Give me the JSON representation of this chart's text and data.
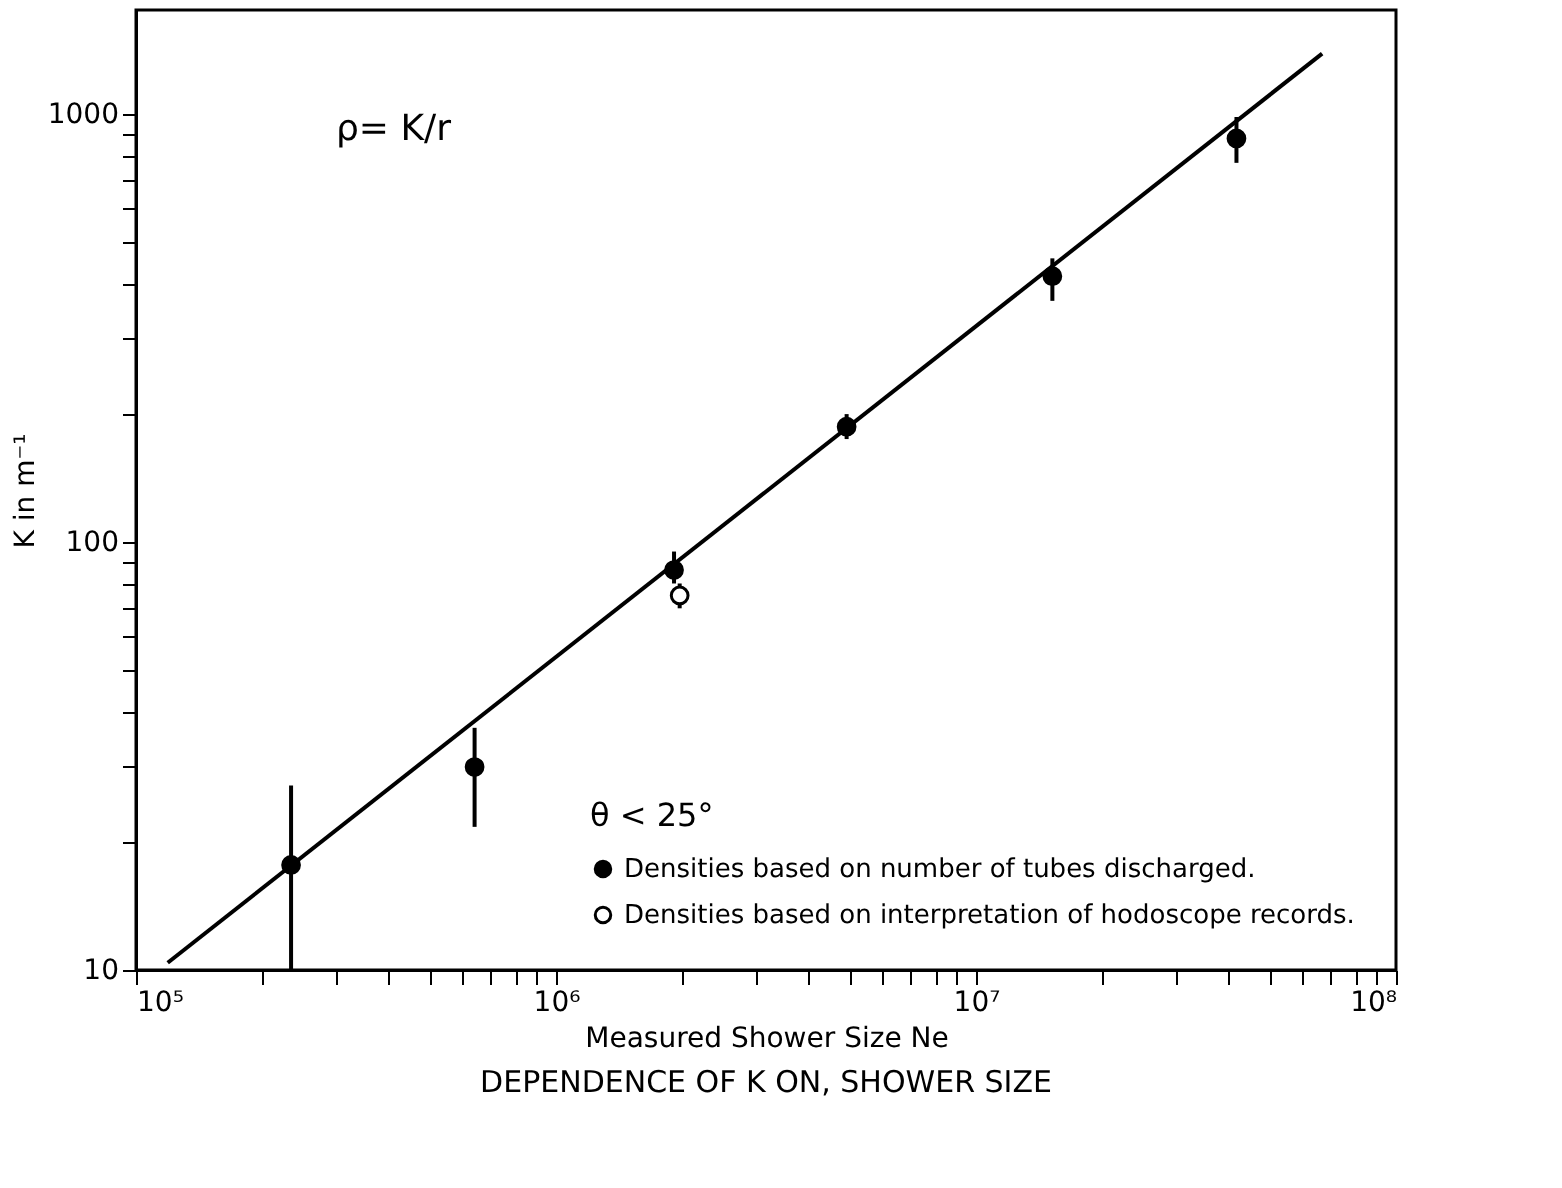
{
  "chart_data": {
    "type": "scatter",
    "title": "DEPENDENCE OF K ON, SHOWER SIZE",
    "xlabel": "Measured Shower Size Ne",
    "ylabel": "K in m⁻¹",
    "legend_title": "θ < 25°",
    "annotations": [
      "ρ= K/r"
    ],
    "log": "xy",
    "grid": false,
    "legend": "bottom right",
    "marker": "circle",
    "xlim": [
      100000,
      100000000
    ],
    "ylim": [
      10,
      1750
    ],
    "xticks": [
      {
        "value": 100000,
        "label": "10⁵"
      },
      {
        "value": 200000,
        "label": null
      },
      {
        "value": 300000,
        "label": null
      },
      {
        "value": 400000,
        "label": null
      },
      {
        "value": 500000,
        "label": null
      },
      {
        "value": 600000,
        "label": null
      },
      {
        "value": 700000,
        "label": null
      },
      {
        "value": 800000,
        "label": null
      },
      {
        "value": 900000,
        "label": null
      },
      {
        "value": 1000000,
        "label": "10⁶"
      },
      {
        "value": 2000000,
        "label": null
      },
      {
        "value": 3000000,
        "label": null
      },
      {
        "value": 4000000,
        "label": null
      },
      {
        "value": 5000000,
        "label": null
      },
      {
        "value": 6000000,
        "label": null
      },
      {
        "value": 7000000,
        "label": null
      },
      {
        "value": 8000000,
        "label": null
      },
      {
        "value": 9000000,
        "label": null
      },
      {
        "value": 10000000,
        "label": "10⁷"
      },
      {
        "value": 20000000,
        "label": null
      },
      {
        "value": 30000000,
        "label": null
      },
      {
        "value": 40000000,
        "label": null
      },
      {
        "value": 50000000,
        "label": null
      },
      {
        "value": 60000000,
        "label": null
      },
      {
        "value": 70000000,
        "label": null
      },
      {
        "value": 80000000,
        "label": null
      },
      {
        "value": 90000000,
        "label": null
      },
      {
        "value": 100000000,
        "label": "10⁸"
      }
    ],
    "yticks": [
      10,
      {
        "value": 20,
        "label": null
      },
      {
        "value": 30,
        "label": null
      },
      {
        "value": 40,
        "label": null
      },
      {
        "value": 50,
        "label": null
      },
      {
        "value": 60,
        "label": null
      },
      {
        "value": 70,
        "label": null
      },
      {
        "value": 80,
        "label": null
      },
      {
        "value": 90,
        "label": null
      },
      100,
      {
        "value": 200,
        "label": null
      },
      {
        "value": 300,
        "label": null
      },
      {
        "value": 400,
        "label": null
      },
      {
        "value": 500,
        "label": null
      },
      {
        "value": 600,
        "label": null
      },
      {
        "value": 700,
        "label": null
      },
      {
        "value": 800,
        "label": null
      },
      {
        "value": 900,
        "label": null
      },
      1000
    ],
    "series": [
      {
        "name": "Densities based on number of tubes discharged.",
        "color": "#000000",
        "x": [
          234000,
          640000,
          1910000,
          4920000,
          15200000,
          41700000
        ],
        "values": [
          17.6,
          29.8,
          86,
          186,
          418,
          877
        ],
        "errors": [
          [
            10,
            27
          ],
          [
            21.6,
            36.8
          ],
          [
            80,
            95
          ],
          [
            174,
            199
          ],
          [
            366,
            460
          ],
          [
            769,
            984
          ]
        ]
      },
      {
        "name": "Densities based on interpretation of hodoscope records.",
        "color": "#ffffff",
        "x": [
          1970000
        ],
        "values": [
          75
        ],
        "errors": [
          [
            70,
            80
          ]
        ]
      },
      {
        "type": "line",
        "color": "#000000",
        "marker": "none",
        "line_style": "solid",
        "x": [
          119000,
          66700000
        ],
        "values": [
          10.4,
          1384
        ]
      }
    ]
  }
}
